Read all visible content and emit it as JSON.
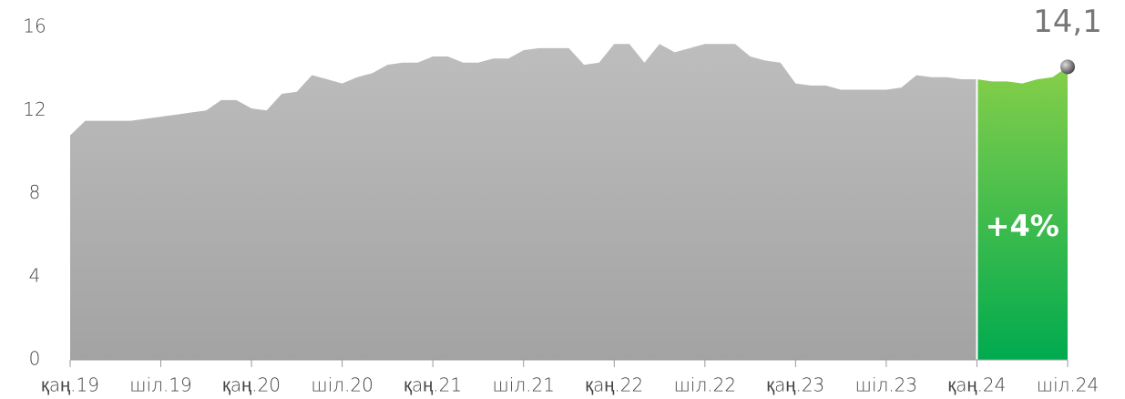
{
  "chart_data": {
    "type": "area",
    "categories": [
      "қаң.19",
      null,
      null,
      null,
      null,
      null,
      "шіл.19",
      null,
      null,
      null,
      null,
      null,
      "қаң.20",
      null,
      null,
      null,
      null,
      null,
      "шіл.20",
      null,
      null,
      null,
      null,
      null,
      "қаң.21",
      null,
      null,
      null,
      null,
      null,
      "шіл.21",
      null,
      null,
      null,
      null,
      null,
      "қаң.22",
      null,
      null,
      null,
      null,
      null,
      "шіл.22",
      null,
      null,
      null,
      null,
      null,
      "қаң.23",
      null,
      null,
      null,
      null,
      null,
      "шіл.23",
      null,
      null,
      null,
      null,
      null,
      "қаң.24",
      null,
      null,
      null,
      null,
      null,
      "шіл.24"
    ],
    "series": [
      {
        "color": "#b0b0b0",
        "values": [
          10.8,
          11.5,
          11.5,
          11.5,
          11.5,
          11.6,
          11.7,
          11.8,
          11.9,
          12.0,
          12.5,
          12.5,
          12.1,
          12.0,
          12.8,
          12.9,
          13.7,
          13.5,
          13.3,
          13.6,
          13.8,
          14.2,
          14.3,
          14.3,
          14.6,
          14.6,
          14.3,
          14.3,
          14.5,
          14.5,
          14.9,
          15.0,
          15.0,
          15.0,
          14.2,
          14.3,
          15.2,
          15.2,
          14.3,
          15.2,
          14.8,
          15.0,
          15.2,
          15.2,
          15.2,
          14.6,
          14.4,
          14.3,
          13.3,
          13.2,
          13.2,
          13.0,
          13.0,
          13.0,
          13.0,
          13.1,
          13.7,
          13.6,
          13.6,
          13.5,
          13.5,
          null,
          null,
          null,
          null,
          null,
          null
        ]
      },
      {
        "color": "#3cbb4e",
        "values": [
          null,
          null,
          null,
          null,
          null,
          null,
          null,
          null,
          null,
          null,
          null,
          null,
          null,
          null,
          null,
          null,
          null,
          null,
          null,
          null,
          null,
          null,
          null,
          null,
          null,
          null,
          null,
          null,
          null,
          null,
          null,
          null,
          null,
          null,
          null,
          null,
          null,
          null,
          null,
          null,
          null,
          null,
          null,
          null,
          null,
          null,
          null,
          null,
          null,
          null,
          null,
          null,
          null,
          null,
          null,
          null,
          null,
          null,
          null,
          null,
          13.5,
          13.4,
          13.4,
          13.3,
          13.5,
          13.6,
          14.1
        ],
        "value_labels": [
          null,
          null,
          null,
          null,
          null,
          null,
          null,
          null,
          null,
          null,
          null,
          null,
          null,
          null,
          null,
          null,
          null,
          null,
          null,
          null,
          null,
          null,
          null,
          null,
          null,
          null,
          null,
          null,
          null,
          null,
          null,
          null,
          null,
          null,
          null,
          null,
          null,
          null,
          null,
          null,
          null,
          null,
          null,
          null,
          null,
          null,
          null,
          null,
          null,
          null,
          null,
          null,
          null,
          null,
          null,
          null,
          null,
          null,
          null,
          null,
          null,
          null,
          null,
          null,
          null,
          null,
          "14,1"
        ]
      }
    ],
    "annotation": "+4%",
    "ylim": [
      0,
      16
    ],
    "yticks": [
      0,
      4,
      8,
      12,
      16
    ]
  }
}
